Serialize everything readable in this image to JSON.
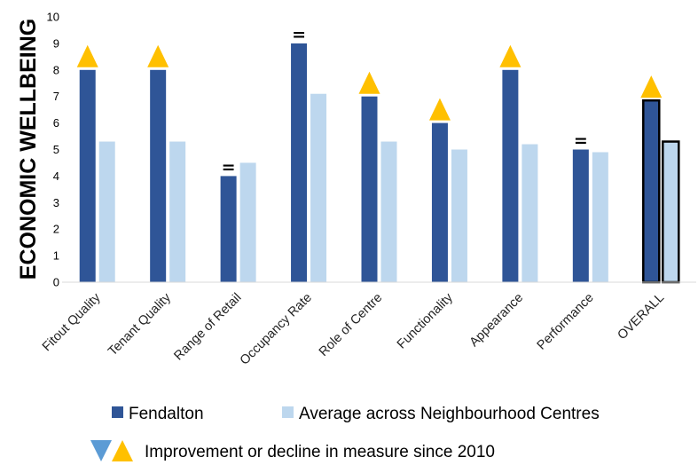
{
  "chart_data": {
    "type": "bar",
    "ylabel": "ECONOMIC WELLBEING",
    "xlabel": "",
    "ylim": [
      0,
      10
    ],
    "yticks": [
      0,
      1,
      2,
      3,
      4,
      5,
      6,
      7,
      8,
      9,
      10
    ],
    "grid": false,
    "categories": [
      "Fitout Quality",
      "Tenant Quality",
      "Range of Retail",
      "Occupancy Rate",
      "Role of Centre",
      "Functionality",
      "Appearance",
      "Performance",
      "OVERALL"
    ],
    "series": [
      {
        "name": "Fendalton",
        "color": "#2f5597",
        "values": [
          8,
          8,
          4,
          9,
          7,
          6,
          8,
          5,
          6.85
        ]
      },
      {
        "name": "Average across Neighbourhood Centres",
        "color": "#bdd7ee",
        "values": [
          5.3,
          5.3,
          4.5,
          7.1,
          5.3,
          5.0,
          5.2,
          4.9,
          5.3
        ]
      }
    ],
    "highlighted_category": "OVERALL",
    "change_markers": [
      "up",
      "up",
      "equal",
      "equal",
      "up",
      "up",
      "up",
      "equal",
      "up"
    ],
    "equal_symbol": "=",
    "marker_colors": {
      "up": "#ffc000",
      "down": "#5b9bd5"
    },
    "legend": {
      "position": "bottom",
      "change_label": "Improvement or decline in measure since 2010"
    }
  }
}
